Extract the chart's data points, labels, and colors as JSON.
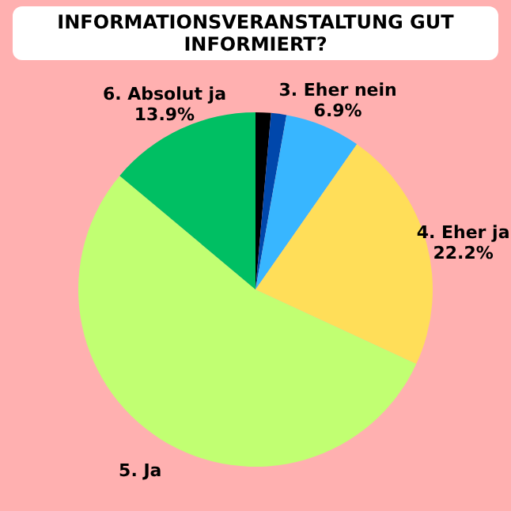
{
  "chart_data": {
    "type": "pie",
    "title": "INFORMATIONSVERANSTALTUNG GUT INFORMIERT?",
    "categories": [
      null,
      null,
      "3. Eher nein",
      "4. Eher ja",
      "5. Ja",
      "6. Absolut ja"
    ],
    "values": [
      1.4,
      1.4,
      6.9,
      22.2,
      54.2,
      13.9
    ],
    "value_labels": [
      null,
      null,
      "6.9%",
      "22.2%",
      null,
      "13.9%"
    ],
    "colors": [
      "#000000",
      "#0047ab",
      "#38b6ff",
      "#ffde59",
      "#c1ff72",
      "#00bf63"
    ]
  }
}
